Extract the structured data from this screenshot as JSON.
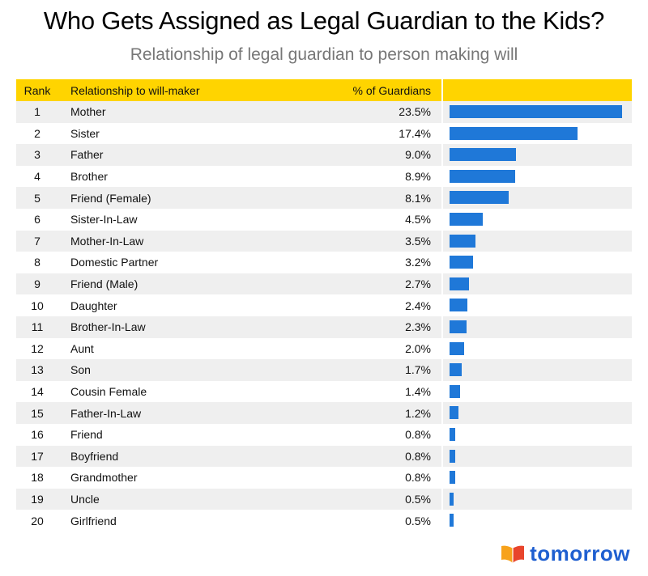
{
  "header": {
    "title": "Who Gets Assigned as Legal Guardian to the Kids?",
    "subtitle": "Relationship of legal guardian to person making will"
  },
  "table": {
    "columns": [
      "Rank",
      "Relationship to will-maker",
      "% of Guardians"
    ]
  },
  "chart_data": {
    "type": "table",
    "title": "Who Gets Assigned as Legal Guardian to the Kids?",
    "subtitle": "Relationship of legal guardian to person making will",
    "columns": [
      "Rank",
      "Relationship to will-maker",
      "% of Guardians"
    ],
    "max_value": 23.5,
    "rows": [
      {
        "rank": "1",
        "relationship": "Mother",
        "pct": "23.5%",
        "value": 23.5
      },
      {
        "rank": "2",
        "relationship": "Sister",
        "pct": "17.4%",
        "value": 17.4
      },
      {
        "rank": "3",
        "relationship": "Father",
        "pct": "9.0%",
        "value": 9.0
      },
      {
        "rank": "4",
        "relationship": "Brother",
        "pct": "8.9%",
        "value": 8.9
      },
      {
        "rank": "5",
        "relationship": "Friend (Female)",
        "pct": "8.1%",
        "value": 8.1
      },
      {
        "rank": "6",
        "relationship": "Sister-In-Law",
        "pct": "4.5%",
        "value": 4.5
      },
      {
        "rank": "7",
        "relationship": "Mother-In-Law",
        "pct": "3.5%",
        "value": 3.5
      },
      {
        "rank": "8",
        "relationship": "Domestic Partner",
        "pct": "3.2%",
        "value": 3.2
      },
      {
        "rank": "9",
        "relationship": "Friend (Male)",
        "pct": "2.7%",
        "value": 2.7
      },
      {
        "rank": "10",
        "relationship": "Daughter",
        "pct": "2.4%",
        "value": 2.4
      },
      {
        "rank": "11",
        "relationship": "Brother-In-Law",
        "pct": "2.3%",
        "value": 2.3
      },
      {
        "rank": "12",
        "relationship": "Aunt",
        "pct": "2.0%",
        "value": 2.0
      },
      {
        "rank": "13",
        "relationship": "Son",
        "pct": "1.7%",
        "value": 1.7
      },
      {
        "rank": "14",
        "relationship": "Cousin Female",
        "pct": "1.4%",
        "value": 1.4
      },
      {
        "rank": "15",
        "relationship": "Father-In-Law",
        "pct": "1.2%",
        "value": 1.2
      },
      {
        "rank": "16",
        "relationship": "Friend",
        "pct": "0.8%",
        "value": 0.8
      },
      {
        "rank": "17",
        "relationship": "Boyfriend",
        "pct": "0.8%",
        "value": 0.8
      },
      {
        "rank": "18",
        "relationship": "Grandmother",
        "pct": "0.8%",
        "value": 0.8
      },
      {
        "rank": "19",
        "relationship": "Uncle",
        "pct": "0.5%",
        "value": 0.5
      },
      {
        "rank": "20",
        "relationship": "Girlfriend",
        "pct": "0.5%",
        "value": 0.5
      }
    ],
    "bar_color": "#1f78d8",
    "header_color": "#ffd400"
  },
  "logo": {
    "text": "tomorrow",
    "icon": "open-book-icon",
    "colors": [
      "#f7a21b",
      "#e8452c",
      "#1f5fd0"
    ]
  }
}
